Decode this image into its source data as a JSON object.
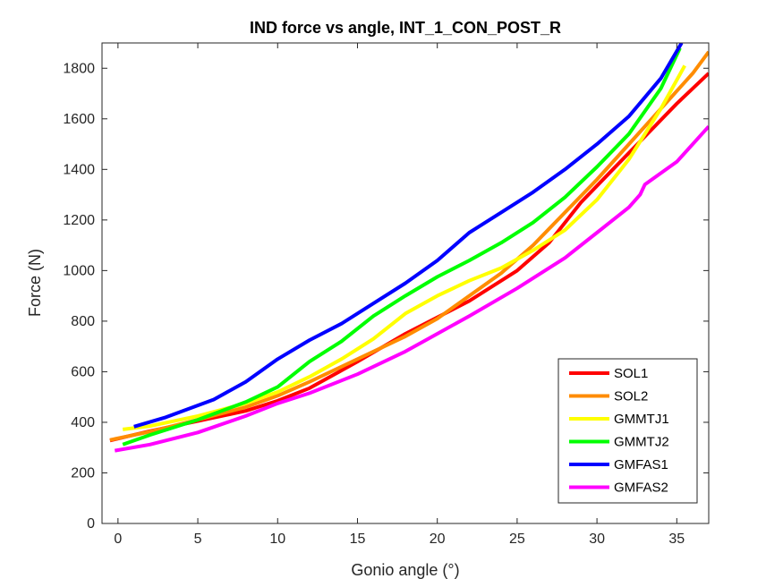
{
  "chart_data": {
    "type": "line",
    "title": "IND force vs angle, INT_1_CON_POST_R",
    "xlabel": "Gonio angle (°)",
    "ylabel": "Force (N)",
    "xlim": [
      -1,
      37
    ],
    "ylim": [
      0,
      1900
    ],
    "xticks": [
      0,
      5,
      10,
      15,
      20,
      25,
      30,
      35
    ],
    "yticks": [
      0,
      200,
      400,
      600,
      800,
      1000,
      1200,
      1400,
      1600,
      1800
    ],
    "grid": false,
    "legend_position": "bottom-right",
    "series": [
      {
        "name": "SOL1",
        "color": "#ff0000",
        "points": [
          [
            -0.5,
            328
          ],
          [
            2,
            365
          ],
          [
            5,
            405
          ],
          [
            8,
            445
          ],
          [
            10,
            485
          ],
          [
            12,
            535
          ],
          [
            15,
            640
          ],
          [
            18,
            750
          ],
          [
            20,
            815
          ],
          [
            22,
            880
          ],
          [
            25,
            1000
          ],
          [
            27,
            1110
          ],
          [
            29,
            1270
          ],
          [
            31,
            1400
          ],
          [
            33,
            1530
          ],
          [
            35,
            1660
          ],
          [
            37,
            1780
          ]
        ]
      },
      {
        "name": "SOL2",
        "color": "#ff8c00",
        "points": [
          [
            -0.5,
            330
          ],
          [
            2,
            363
          ],
          [
            5,
            410
          ],
          [
            8,
            460
          ],
          [
            10,
            505
          ],
          [
            12,
            560
          ],
          [
            15,
            650
          ],
          [
            18,
            740
          ],
          [
            20,
            810
          ],
          [
            22,
            900
          ],
          [
            24,
            990
          ],
          [
            26,
            1100
          ],
          [
            28,
            1230
          ],
          [
            30,
            1360
          ],
          [
            32,
            1500
          ],
          [
            34,
            1640
          ],
          [
            36,
            1780
          ],
          [
            37,
            1865
          ]
        ]
      },
      {
        "name": "GMMTJ1",
        "color": "#ffff00",
        "points": [
          [
            0.3,
            372
          ],
          [
            2,
            385
          ],
          [
            5,
            425
          ],
          [
            8,
            475
          ],
          [
            10,
            520
          ],
          [
            12,
            580
          ],
          [
            14,
            650
          ],
          [
            16,
            730
          ],
          [
            18,
            830
          ],
          [
            20,
            900
          ],
          [
            22,
            960
          ],
          [
            24,
            1010
          ],
          [
            26,
            1080
          ],
          [
            28,
            1160
          ],
          [
            30,
            1280
          ],
          [
            32,
            1440
          ],
          [
            34,
            1640
          ],
          [
            35.5,
            1810
          ]
        ]
      },
      {
        "name": "GMMTJ2",
        "color": "#00ff00",
        "points": [
          [
            0.3,
            312
          ],
          [
            2,
            350
          ],
          [
            5,
            410
          ],
          [
            8,
            480
          ],
          [
            10,
            540
          ],
          [
            12,
            640
          ],
          [
            14,
            720
          ],
          [
            16,
            820
          ],
          [
            18,
            900
          ],
          [
            20,
            975
          ],
          [
            22,
            1040
          ],
          [
            24,
            1110
          ],
          [
            26,
            1190
          ],
          [
            28,
            1290
          ],
          [
            30,
            1410
          ],
          [
            32,
            1540
          ],
          [
            34,
            1720
          ],
          [
            35.2,
            1880
          ]
        ]
      },
      {
        "name": "GMFAS1",
        "color": "#0000ff",
        "points": [
          [
            1,
            383
          ],
          [
            3,
            420
          ],
          [
            6,
            490
          ],
          [
            8,
            560
          ],
          [
            10,
            650
          ],
          [
            12,
            725
          ],
          [
            14,
            790
          ],
          [
            16,
            870
          ],
          [
            18,
            950
          ],
          [
            20,
            1040
          ],
          [
            22,
            1150
          ],
          [
            24,
            1230
          ],
          [
            26,
            1310
          ],
          [
            28,
            1400
          ],
          [
            30,
            1500
          ],
          [
            32,
            1610
          ],
          [
            34,
            1760
          ],
          [
            35.3,
            1900
          ]
        ]
      },
      {
        "name": "GMFAS2",
        "color": "#ff00ff",
        "points": [
          [
            -0.2,
            288
          ],
          [
            2,
            312
          ],
          [
            5,
            360
          ],
          [
            8,
            425
          ],
          [
            10,
            475
          ],
          [
            12,
            515
          ],
          [
            15,
            590
          ],
          [
            18,
            680
          ],
          [
            20,
            750
          ],
          [
            22,
            820
          ],
          [
            25,
            930
          ],
          [
            28,
            1050
          ],
          [
            30,
            1150
          ],
          [
            32,
            1250
          ],
          [
            32.7,
            1300
          ],
          [
            33,
            1340
          ],
          [
            35,
            1430
          ],
          [
            37,
            1570
          ]
        ]
      }
    ]
  }
}
